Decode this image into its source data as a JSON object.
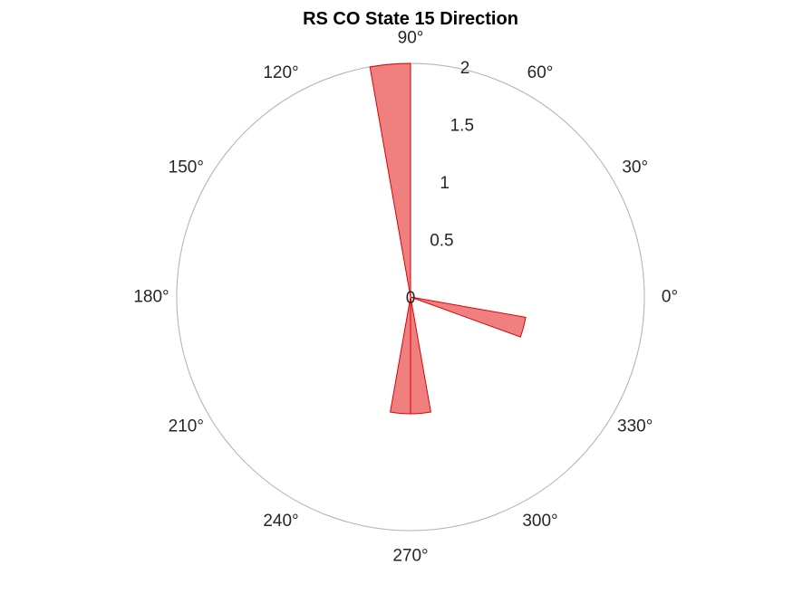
{
  "chart_data": {
    "type": "polar_histogram",
    "title": "RS  CO State 15 Direction",
    "rlim": [
      0,
      2
    ],
    "r_ticks": [
      0,
      0.5,
      1,
      1.5,
      2
    ],
    "r_tick_labels": [
      "0",
      "0.5",
      "1",
      "1.5",
      "2"
    ],
    "theta_ticks_deg": [
      0,
      30,
      60,
      90,
      120,
      150,
      180,
      210,
      240,
      270,
      300,
      330
    ],
    "theta_tick_labels": [
      "0°",
      "30°",
      "60°",
      "90°",
      "120°",
      "150°",
      "180°",
      "210°",
      "240°",
      "270°",
      "300°",
      "330°"
    ],
    "grid": true,
    "bin_width_deg": 10,
    "bins": [
      {
        "start_deg": 90,
        "end_deg": 100,
        "value": 2
      },
      {
        "start_deg": 260,
        "end_deg": 270,
        "value": 1
      },
      {
        "start_deg": 270,
        "end_deg": 280,
        "value": 1
      },
      {
        "start_deg": 340,
        "end_deg": 350,
        "value": 1
      }
    ],
    "colors": {
      "bar_fill": "#f08080",
      "bar_edge": "#e00000",
      "grid": "#e0e0e0",
      "axis": "#b4b4b4",
      "text": "#262626"
    }
  }
}
